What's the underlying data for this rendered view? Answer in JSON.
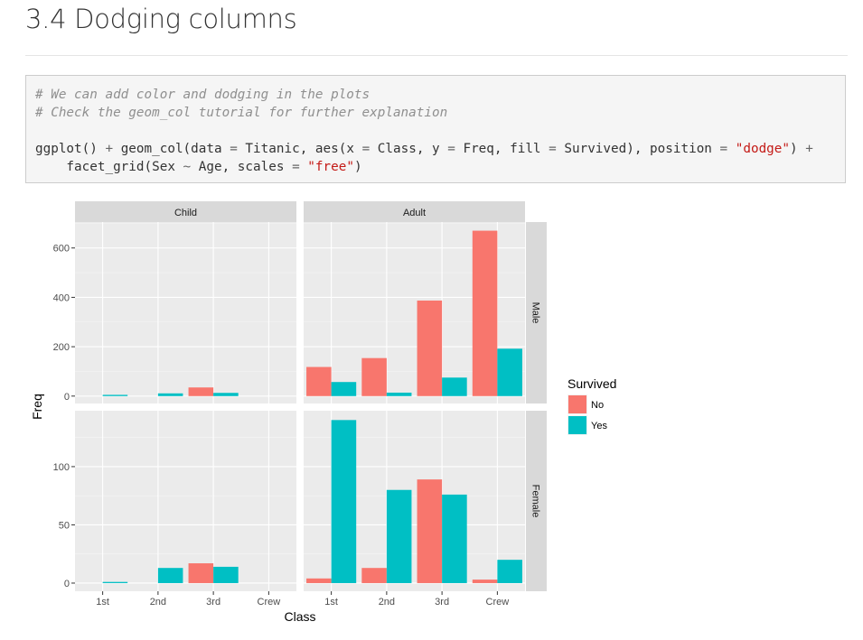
{
  "section": {
    "title": "3.4 Dodging columns"
  },
  "code": {
    "comment1": "# We can add color and dodging in the plots",
    "comment2": "# Check the geom_col tutorial for further explanation",
    "l3_a": "ggplot",
    "l3_b": "() ",
    "l3_c": "+",
    "l3_d": " geom_col(data ",
    "l3_e": "=",
    "l3_f": " Titanic, aes(x ",
    "l3_g": "=",
    "l3_h": " Class, y ",
    "l3_i": "=",
    "l3_j": " Freq, fill ",
    "l3_k": "=",
    "l3_l": " Survived), position ",
    "l3_m": "=",
    "l3_n": " ",
    "l3_o": "\"dodge\"",
    "l3_p": ") ",
    "l3_q": "+",
    "l4_a": "    facet_grid(Sex ",
    "l4_b": "~",
    "l4_c": " Age, scales ",
    "l4_d": "=",
    "l4_e": " ",
    "l4_f": "\"free\"",
    "l4_g": ")"
  },
  "chart_data": {
    "type": "bar",
    "position": "dodge",
    "xlabel": "Class",
    "ylabel": "Freq",
    "categories": [
      "1st",
      "2nd",
      "3rd",
      "Crew"
    ],
    "col_facets": [
      "Child",
      "Adult"
    ],
    "row_facets": [
      "Male",
      "Female"
    ],
    "legend": {
      "title": "Survived",
      "placement": "right",
      "items": [
        {
          "name": "No",
          "color": "#F8766D"
        },
        {
          "name": "Yes",
          "color": "#00BFC4"
        }
      ]
    },
    "panel_bg": "#EBEBEB",
    "strip_bg": "#D9D9D9",
    "grid": true,
    "rows": [
      {
        "ylim": [
          -30,
          705
        ],
        "yticks": [
          0,
          200,
          400,
          600
        ]
      },
      {
        "ylim": [
          -7,
          148
        ],
        "yticks": [
          0,
          50,
          100
        ]
      }
    ],
    "panels": [
      {
        "row": 0,
        "col": 0,
        "facet": "Male / Child",
        "series": [
          {
            "name": "No",
            "values": [
              0,
              0,
              35,
              0
            ]
          },
          {
            "name": "Yes",
            "values": [
              5,
              11,
              13,
              0
            ]
          }
        ]
      },
      {
        "row": 0,
        "col": 1,
        "facet": "Male / Adult",
        "series": [
          {
            "name": "No",
            "values": [
              118,
              154,
              387,
              670
            ]
          },
          {
            "name": "Yes",
            "values": [
              57,
              14,
              75,
              192
            ]
          }
        ]
      },
      {
        "row": 1,
        "col": 0,
        "facet": "Female / Child",
        "series": [
          {
            "name": "No",
            "values": [
              0,
              0,
              17,
              0
            ]
          },
          {
            "name": "Yes",
            "values": [
              1,
              13,
              14,
              0
            ]
          }
        ]
      },
      {
        "row": 1,
        "col": 1,
        "facet": "Female / Adult",
        "series": [
          {
            "name": "No",
            "values": [
              4,
              13,
              89,
              3
            ]
          },
          {
            "name": "Yes",
            "values": [
              140,
              80,
              76,
              20
            ]
          }
        ]
      }
    ]
  }
}
